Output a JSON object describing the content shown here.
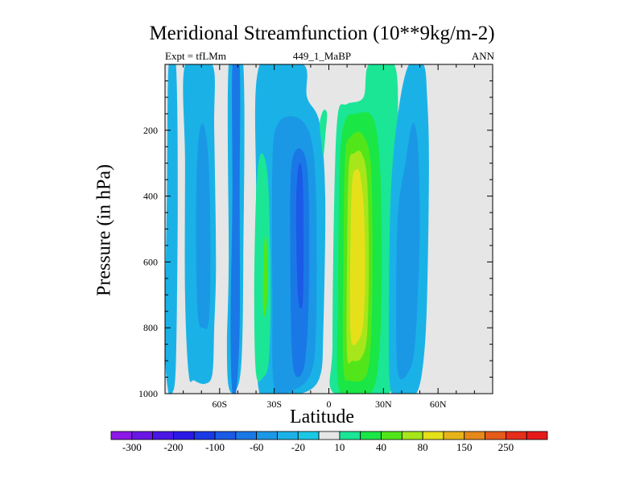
{
  "chart_data": {
    "type": "heatmap",
    "title": "Meridional Streamfunction (10**9kg/m-2)",
    "subtitle_left": "Expt = tfLMm",
    "subtitle_center": "449_1_MaBP",
    "subtitle_right": "ANN",
    "xlabel": "Latitude",
    "ylabel": "Pressure (in hPa)",
    "xlim": [
      -90,
      90
    ],
    "ylim": [
      1000,
      0
    ],
    "x_ticks": [
      {
        "value": -60,
        "label": "60S"
      },
      {
        "value": -30,
        "label": "30S"
      },
      {
        "value": 0,
        "label": "0"
      },
      {
        "value": 30,
        "label": "30N"
      },
      {
        "value": 60,
        "label": "60N"
      }
    ],
    "y_ticks": [
      {
        "value": 200,
        "label": "200"
      },
      {
        "value": 400,
        "label": "400"
      },
      {
        "value": 600,
        "label": "600"
      },
      {
        "value": 800,
        "label": "800"
      },
      {
        "value": 1000,
        "label": "1000"
      }
    ],
    "colorbar": {
      "colors": [
        "#8c17e6",
        "#6a17e6",
        "#4a17e6",
        "#2b1ae6",
        "#1a3ae6",
        "#1a5ae6",
        "#1a78e6",
        "#1a98e6",
        "#1ab2e6",
        "#1ac8e6",
        "#e6e6e6",
        "#1ae696",
        "#1ae646",
        "#52e61a",
        "#a6e61a",
        "#e6e01a",
        "#e6b41a",
        "#e6881a",
        "#e65a1a",
        "#e62e1a",
        "#e61a1a"
      ],
      "labels": [
        {
          "index": 1,
          "text": "-300"
        },
        {
          "index": 3,
          "text": "-200"
        },
        {
          "index": 5,
          "text": "-100"
        },
        {
          "index": 7,
          "text": "-60"
        },
        {
          "index": 9,
          "text": "-20"
        },
        {
          "index": 11,
          "text": "10"
        },
        {
          "index": 13,
          "text": "40"
        },
        {
          "index": 15,
          "text": "80"
        },
        {
          "index": 17,
          "text": "150"
        },
        {
          "index": 19,
          "text": "250"
        }
      ]
    },
    "background_color": "#e6e6e6",
    "contours": [
      {
        "color": "#1ab2e6",
        "points": [
          [
            -88,
            1000
          ],
          [
            -90,
            850
          ],
          [
            -89,
            400
          ],
          [
            -88,
            0
          ],
          [
            -84,
            0
          ],
          [
            -83,
            400
          ],
          [
            -84,
            900
          ],
          [
            -86,
            1000
          ]
        ]
      },
      {
        "color": "#1ab2e6",
        "points": [
          [
            -77,
            940
          ],
          [
            -79,
            700
          ],
          [
            -79,
            300
          ],
          [
            -79,
            0
          ],
          [
            -64,
            0
          ],
          [
            -63,
            200
          ],
          [
            -62,
            600
          ],
          [
            -63,
            800
          ],
          [
            -64,
            940
          ],
          [
            -68,
            970
          ],
          [
            -74,
            960
          ]
        ]
      },
      {
        "color": "#1a98e6",
        "points": [
          [
            -72,
            760
          ],
          [
            -73,
            500
          ],
          [
            -72,
            250
          ],
          [
            -69,
            180
          ],
          [
            -66,
            300
          ],
          [
            -65,
            600
          ],
          [
            -66,
            780
          ],
          [
            -69,
            800
          ]
        ]
      },
      {
        "color": "#1ab2e6",
        "points": [
          [
            -55,
            980
          ],
          [
            -56,
            850
          ],
          [
            -55,
            600
          ],
          [
            -55,
            0
          ],
          [
            -47,
            0
          ],
          [
            -47,
            600
          ],
          [
            -48,
            900
          ],
          [
            -51,
            990
          ]
        ]
      },
      {
        "color": "#1a78e6",
        "points": [
          [
            -53,
            1000
          ],
          [
            -54,
            800
          ],
          [
            -53,
            400
          ],
          [
            -53,
            0
          ],
          [
            -49,
            0
          ],
          [
            -49,
            400
          ],
          [
            -49,
            800
          ],
          [
            -51,
            1000
          ]
        ]
      },
      {
        "color": "#1ab2e6",
        "points": [
          [
            -38,
            1000
          ],
          [
            -40,
            800
          ],
          [
            -40,
            400
          ],
          [
            -38,
            0
          ],
          [
            -14,
            0
          ],
          [
            -12,
            100
          ],
          [
            -5,
            180
          ],
          [
            -2,
            400
          ],
          [
            -3,
            800
          ],
          [
            -5,
            950
          ],
          [
            -15,
            1000
          ],
          [
            -30,
            1000
          ]
        ]
      },
      {
        "color": "#1a98e6",
        "points": [
          [
            -30,
            980
          ],
          [
            -31,
            700
          ],
          [
            -31,
            300
          ],
          [
            -28,
            180
          ],
          [
            -18,
            160
          ],
          [
            -10,
            220
          ],
          [
            -7,
            400
          ],
          [
            -7,
            800
          ],
          [
            -10,
            940
          ],
          [
            -20,
            990
          ]
        ]
      },
      {
        "color": "#1a78e6",
        "points": [
          [
            -20,
            900
          ],
          [
            -21,
            700
          ],
          [
            -21,
            350
          ],
          [
            -18,
            260
          ],
          [
            -13,
            280
          ],
          [
            -11,
            400
          ],
          [
            -11,
            700
          ],
          [
            -13,
            900
          ],
          [
            -17,
            950
          ]
        ]
      },
      {
        "color": "#1a5ae6",
        "points": [
          [
            -17,
            700
          ],
          [
            -18,
            450
          ],
          [
            -17,
            320
          ],
          [
            -15,
            310
          ],
          [
            -14,
            420
          ],
          [
            -14,
            680
          ],
          [
            -15,
            740
          ]
        ]
      },
      {
        "color": "#1ae696",
        "points": [
          [
            -40,
            940
          ],
          [
            -41,
            700
          ],
          [
            -40,
            400
          ],
          [
            -38,
            280
          ],
          [
            -35,
            290
          ],
          [
            -33,
            400
          ],
          [
            -32,
            700
          ],
          [
            -33,
            900
          ],
          [
            -36,
            950
          ]
        ]
      },
      {
        "color": "#1ae696",
        "points": [
          [
            -37,
            860
          ],
          [
            -38,
            650
          ],
          [
            -37,
            450
          ],
          [
            -35,
            420
          ],
          [
            -33,
            480
          ],
          [
            -33,
            700
          ],
          [
            -34,
            840
          ]
        ]
      },
      {
        "color": "#52e61a",
        "points": [
          [
            -36,
            760
          ],
          [
            -36,
            600
          ],
          [
            -35,
            520
          ],
          [
            -34,
            560
          ],
          [
            -34,
            720
          ]
        ]
      },
      {
        "color": "#1ae696",
        "points": [
          [
            -5,
            180
          ],
          [
            -3,
            140
          ],
          [
            -1,
            150
          ],
          [
            -2,
            220
          ],
          [
            -3,
            280
          ],
          [
            -4,
            240
          ]
        ]
      },
      {
        "color": "#1ae696",
        "points": [
          [
            3,
            1000
          ],
          [
            2,
            850
          ],
          [
            3,
            400
          ],
          [
            5,
            150
          ],
          [
            10,
            120
          ],
          [
            19,
            100
          ],
          [
            22,
            0
          ],
          [
            36,
            0
          ],
          [
            38,
            200
          ],
          [
            37,
            500
          ],
          [
            36,
            800
          ],
          [
            33,
            1000
          ]
        ]
      },
      {
        "color": "#1ae646",
        "points": [
          [
            5,
            970
          ],
          [
            5,
            700
          ],
          [
            6,
            300
          ],
          [
            9,
            170
          ],
          [
            15,
            150
          ],
          [
            24,
            160
          ],
          [
            28,
            300
          ],
          [
            29,
            600
          ],
          [
            28,
            850
          ],
          [
            24,
            990
          ],
          [
            12,
            1000
          ]
        ]
      },
      {
        "color": "#52e61a",
        "points": [
          [
            8,
            920
          ],
          [
            8,
            600
          ],
          [
            9,
            280
          ],
          [
            12,
            220
          ],
          [
            18,
            210
          ],
          [
            23,
            300
          ],
          [
            24,
            600
          ],
          [
            23,
            850
          ],
          [
            20,
            950
          ],
          [
            12,
            960
          ]
        ]
      },
      {
        "color": "#a6e61a",
        "points": [
          [
            10,
            880
          ],
          [
            10,
            600
          ],
          [
            11,
            310
          ],
          [
            14,
            270
          ],
          [
            18,
            270
          ],
          [
            21,
            350
          ],
          [
            22,
            600
          ],
          [
            21,
            820
          ],
          [
            18,
            890
          ],
          [
            13,
            900
          ]
        ]
      },
      {
        "color": "#e6e01a",
        "points": [
          [
            12,
            820
          ],
          [
            12,
            500
          ],
          [
            13,
            350
          ],
          [
            15,
            320
          ],
          [
            17,
            330
          ],
          [
            19,
            420
          ],
          [
            20,
            600
          ],
          [
            19,
            780
          ],
          [
            16,
            840
          ]
        ]
      },
      {
        "color": "#1ab2e6",
        "points": [
          [
            34,
            990
          ],
          [
            33,
            800
          ],
          [
            34,
            400
          ],
          [
            38,
            150
          ],
          [
            44,
            0
          ],
          [
            52,
            0
          ],
          [
            54,
            100
          ],
          [
            55,
            300
          ],
          [
            54,
            700
          ],
          [
            52,
            900
          ],
          [
            48,
            1000
          ],
          [
            40,
            1000
          ]
        ]
      },
      {
        "color": "#1a98e6",
        "points": [
          [
            38,
            940
          ],
          [
            37,
            700
          ],
          [
            38,
            450
          ],
          [
            42,
            300
          ],
          [
            46,
            180
          ],
          [
            49,
            250
          ],
          [
            50,
            500
          ],
          [
            48,
            800
          ],
          [
            45,
            920
          ]
        ]
      }
    ]
  }
}
